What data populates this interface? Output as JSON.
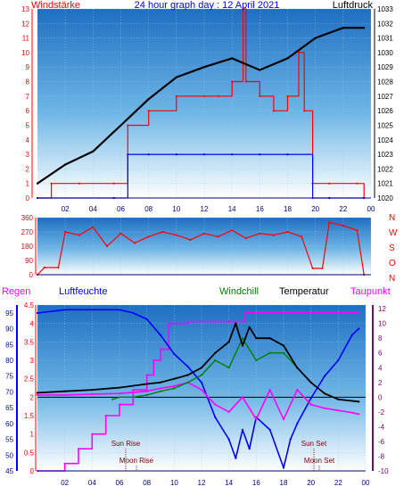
{
  "chart_data": [
    {
      "type": "line",
      "title": "24 hour graph day : 12 April 2021",
      "left_label": "Windstärke",
      "right_label": "Luftdruck",
      "x_ticks": [
        "02",
        "04",
        "06",
        "08",
        "10",
        "12",
        "14",
        "16",
        "18",
        "20",
        "22",
        "00"
      ],
      "left_ticks": [
        "0",
        "1",
        "2",
        "3",
        "4",
        "5",
        "6",
        "7",
        "8",
        "9",
        "10",
        "11",
        "12",
        "13"
      ],
      "right_ticks": [
        "1020",
        "1021",
        "1022",
        "1023",
        "1024",
        "1025",
        "1026",
        "1027",
        "1028",
        "1029",
        "1030",
        "1031",
        "1032",
        "1033"
      ],
      "ylim_left": [
        0,
        13
      ],
      "ylim_right": [
        1020,
        1033
      ],
      "colors": {
        "wind_gust": "#ff0000",
        "wind_avg": "#0000ff",
        "pressure": "#000000",
        "left_axis": "#ff0000",
        "right_axis": "#000000"
      },
      "series": [
        {
          "name": "Luftdruck",
          "axis": "right",
          "x": [
            0,
            2,
            4,
            6,
            8,
            10,
            12,
            14,
            16,
            18,
            20,
            22,
            23.5
          ],
          "y": [
            1021.0,
            1022.3,
            1023.2,
            1025.0,
            1026.8,
            1028.3,
            1029.0,
            1029.6,
            1028.8,
            1029.6,
            1031.0,
            1031.7,
            1031.7
          ]
        },
        {
          "name": "Windstärke (gust)",
          "axis": "left",
          "x": [
            0,
            1,
            3,
            5.5,
            6.5,
            8,
            10,
            12,
            13,
            14,
            14.8,
            15,
            16,
            17,
            18,
            18.8,
            19.2,
            19.8,
            21,
            23,
            23.5
          ],
          "y": [
            0,
            1,
            1,
            1,
            5,
            6,
            7,
            7,
            7,
            8,
            13,
            8,
            7,
            6,
            7,
            10,
            6,
            1,
            1,
            1,
            0
          ]
        },
        {
          "name": "Windstärke (avg)",
          "axis": "left",
          "x": [
            0,
            5.5,
            6.5,
            8,
            10,
            12,
            14,
            16,
            18,
            19.8,
            21,
            23.5
          ],
          "y": [
            0,
            0,
            3,
            3,
            3,
            3,
            3,
            3,
            3,
            0,
            0,
            0
          ]
        }
      ]
    },
    {
      "type": "line",
      "left_ticks": [
        "0",
        "90",
        "180",
        "270",
        "360"
      ],
      "right_ticks": [
        "N",
        "W",
        "S",
        "O",
        "N"
      ],
      "ylim": [
        0,
        360
      ],
      "colors": {
        "direction": "#ff0000"
      },
      "series": [
        {
          "name": "Windrichtung",
          "x": [
            0,
            0.5,
            1.5,
            2,
            3,
            4,
            5,
            6,
            7,
            8,
            9,
            10,
            11,
            12,
            13,
            14,
            15,
            16,
            17,
            18,
            19,
            19.8,
            20.5,
            21,
            22,
            23,
            23.5
          ],
          "y": [
            0,
            45,
            45,
            270,
            250,
            300,
            180,
            260,
            200,
            240,
            270,
            250,
            220,
            260,
            240,
            280,
            230,
            260,
            250,
            270,
            240,
            40,
            40,
            330,
            310,
            280,
            0
          ]
        }
      ]
    },
    {
      "type": "line",
      "labels": {
        "rain": "Regen",
        "humidity": "Luftfeuchte",
        "windchill": "Windchill",
        "temperature": "Temperatur",
        "dewpoint": "Taupunkt"
      },
      "rain_ticks": [
        "0",
        "0.5",
        "1",
        "1.5",
        "2",
        "2.5",
        "3",
        "3.5",
        "4",
        "4.5"
      ],
      "humidity_ticks": [
        "45",
        "50",
        "55",
        "60",
        "65",
        "70",
        "75",
        "80",
        "85",
        "90",
        "95"
      ],
      "temp_ticks": [
        "-10",
        "-8",
        "-6",
        "-4",
        "-2",
        "0",
        "2",
        "4",
        "6",
        "8",
        "10",
        "12"
      ],
      "x_ticks": [
        "02",
        "04",
        "06",
        "08",
        "10",
        "12",
        "14",
        "16",
        "18",
        "20",
        "22",
        "00"
      ],
      "ylim_rain": [
        0,
        4.5
      ],
      "ylim_humidity": [
        45,
        97.5
      ],
      "ylim_temp": [
        -10,
        12.5
      ],
      "annotations": {
        "sun_rise": "Sun Rise",
        "moon_rise": "Moon Rise",
        "sun_set": "Sun Set",
        "moon_set": "Moon Set"
      },
      "colors": {
        "rain": "#ff00ff",
        "humidity": "#0000ff",
        "windchill": "#008000",
        "temperature": "#000000",
        "dewpoint": "#ff00ff",
        "rain_axis": "#ff0000",
        "humidity_axis": "#0000ff",
        "temp_axis": "#800080"
      },
      "series": [
        {
          "name": "Regen",
          "axis": "rain",
          "x": [
            0,
            2,
            3,
            4,
            5,
            6,
            7,
            8,
            8.5,
            9,
            9.6,
            10,
            11,
            13,
            14,
            15,
            15.2,
            16,
            18,
            20,
            22,
            23.5
          ],
          "y": [
            0,
            0.2,
            0.6,
            1.0,
            1.5,
            1.8,
            2.2,
            2.6,
            3.0,
            3.3,
            4.0,
            4.0,
            4.05,
            4.05,
            4.05,
            4.05,
            4.3,
            4.3,
            4.3,
            4.3,
            4.3,
            4.3
          ]
        },
        {
          "name": "Luftfeuchte",
          "axis": "humidity",
          "x": [
            0,
            2,
            4,
            6,
            7,
            8,
            9,
            10,
            11,
            12,
            13,
            14,
            14.5,
            15,
            15.5,
            16,
            17,
            18,
            18.5,
            19,
            20,
            21,
            22,
            23,
            23.5
          ],
          "y": [
            95,
            96,
            96,
            96,
            95,
            93,
            88,
            82,
            78,
            73,
            62,
            55,
            49,
            58,
            52,
            62,
            58,
            46,
            55,
            60,
            68,
            75,
            80,
            88,
            90
          ]
        },
        {
          "name": "Windchill",
          "axis": "temp",
          "x": [
            5.5,
            6,
            7,
            8,
            9,
            10,
            11,
            12,
            13,
            14,
            15,
            16,
            17,
            18,
            19
          ],
          "y": [
            -0.3,
            0,
            0,
            0.3,
            0.8,
            1.2,
            2,
            3,
            5,
            4,
            8,
            5,
            6,
            6,
            4
          ]
        },
        {
          "name": "Temperatur",
          "axis": "temp",
          "x": [
            0,
            2,
            4,
            6,
            8,
            9,
            10,
            11,
            12,
            13,
            14,
            14.5,
            15,
            15.5,
            16,
            17,
            18,
            19,
            20,
            21,
            22,
            23.5
          ],
          "y": [
            0.6,
            0.8,
            1,
            1.3,
            1.8,
            2,
            2.5,
            3,
            4,
            6,
            7.5,
            10,
            7,
            9.5,
            8,
            8,
            7,
            4,
            2,
            0.5,
            -0.3,
            -0.6
          ]
        },
        {
          "name": "Taupunkt",
          "axis": "temp",
          "x": [
            0,
            2,
            4,
            6,
            8,
            9,
            10,
            11,
            12,
            13,
            14,
            15,
            16,
            17,
            18,
            19,
            20,
            21,
            22,
            23,
            23.5
          ],
          "y": [
            0.3,
            0.3,
            0.4,
            0.5,
            0.8,
            1.2,
            1.5,
            2,
            1,
            -1,
            -2,
            0,
            -3,
            1,
            -3,
            1,
            -1,
            -1.5,
            -1.8,
            -2.1,
            -2.3
          ]
        }
      ]
    }
  ]
}
